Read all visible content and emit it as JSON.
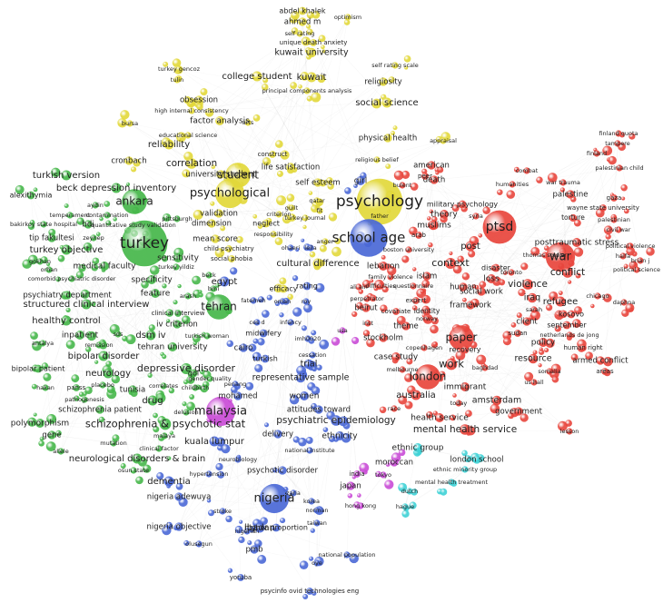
{
  "clusters": [
    {
      "color": "#e2d83a",
      "nodes": [
        "abdel khalek",
        "ahmed m",
        "optimism",
        "self rating",
        "unique death anxiety",
        "kuwait university",
        "turkey gencoz",
        "tulin",
        "self rating scale",
        "college student",
        "kuwait",
        "religiosity",
        "principal components analysis",
        "obsession",
        "social science",
        "high internal consistency",
        "factor analysis",
        "bursa",
        "educational science",
        "arts",
        "physical health",
        "appraisal",
        "reliability",
        "correlation",
        "cronbach",
        "construct",
        "religious belief",
        "university student",
        "student",
        "life satisfaction",
        "psychological",
        "self esteem",
        "validation",
        "dimension",
        "criterion",
        "guilt",
        "fit",
        "qatar",
        "neglect",
        "turkey journal",
        "responsibility",
        "mean score",
        "child psychiatry",
        "social phobia",
        "cultural difference",
        "efficacy",
        "anger",
        "father",
        "psychology"
      ]
    },
    {
      "color": "#4a68d6",
      "nodes": [
        "school age",
        "girl",
        "ohaeri",
        "leila",
        "egypt",
        "rating",
        "fatemeh",
        "oman",
        "roy",
        "ces d",
        "midwifery",
        "infancy",
        "imh0020",
        "turkish",
        "cairo",
        "cessation",
        "trial",
        "representative sample",
        "women",
        "penang",
        "mohamed",
        "attitudes toward",
        "psychiatric epidemiology",
        "delivery",
        "ethnicity",
        "kuala lumpur",
        "national institute",
        "neurobiology",
        "psychotic disorder",
        "dementia",
        "hypertension",
        "nigeria",
        "zaria",
        "korea",
        "norman",
        "taiwan",
        "nigeria adewuya",
        "stroke",
        "higher proportion",
        "nigerian",
        "nigeria objective",
        "ibadan",
        "olusegun",
        "pmb",
        "oye",
        "national population",
        "yoruba",
        "psycinfo ovid technologies eng"
      ]
    },
    {
      "color": "#c94bd6",
      "nodes": [
        "malaysia",
        "usa",
        "moroccan",
        "tokyo",
        "india",
        "japan",
        "hong kong"
      ]
    },
    {
      "color": "#3fd2d6",
      "nodes": [
        "ethnic group",
        "london school",
        "ethnic minority group",
        "dutch",
        "mental health treatment",
        "hague"
      ]
    },
    {
      "color": "#46b74a",
      "nodes": [
        "turkish version",
        "beck depression inventory",
        "ankara",
        "alexithymia",
        "aydin",
        "temperament",
        "contamination",
        "bdi",
        "quantitative study validation",
        "pittsburgh",
        "bakirkoy state hospital",
        "turkey",
        "tip fakultesi",
        "zeynep",
        "turkey objective",
        "sensitivity",
        "turkey yildiz",
        "gokhan",
        "orhan",
        "medical faculty",
        "comorbid psychiatric disorder",
        "specificity",
        "psychiatry department",
        "structured clinical interview",
        "feature",
        "arash",
        "beck",
        "bmi",
        "tehran",
        "healthy control",
        "clinical interview",
        "iv criterion",
        "inpatient",
        "sds",
        "dsm iv",
        "remission",
        "antalya",
        "tehran university",
        "turkish woman",
        "bipolar disorder",
        "bipolar patient",
        "depressive disorder",
        "neurology",
        "qol",
        "gender quality",
        "hakan",
        "panss",
        "placebo",
        "tunisia",
        "correlates",
        "childbirth",
        "drug",
        "pathogenesis",
        "schizophrenia patient",
        "delusion",
        "polymorphism",
        "schizophrenia & psychotic stat",
        "gene",
        "malaya",
        "mutation",
        "clinical factor",
        "allele",
        "neurological disorders & brain",
        "osun state"
      ]
    },
    {
      "color": "#e8453c",
      "nodes": [
        "finland quota",
        "tampere",
        "finland",
        "combat",
        "palestinian child",
        "humanities",
        "war trauma",
        "palestine",
        "gaza",
        "wayne state university",
        "torture",
        "palestinian",
        "civil war",
        "american",
        "peer",
        "death",
        "bulent",
        "military psychology",
        "theory",
        "syria",
        "muslims",
        "ptsd",
        "arab",
        "boston university",
        "post",
        "posttraumatic stress",
        "political violence",
        "thomas soldier",
        "war",
        "haifa",
        "brian j",
        "context",
        "lebanon",
        "disaster",
        "political science",
        "toronto",
        "conflict",
        "islam",
        "family violence",
        "difficulties",
        "questionnaire",
        "loss",
        "ali ain",
        "violence",
        "human",
        "social work",
        "iraq",
        "refugee",
        "perpetrator",
        "expert",
        "chicago",
        "daphna",
        "framework",
        "beirut",
        "covariate",
        "identity",
        "sarah",
        "kosovo",
        "norway",
        "client",
        "inst",
        "september",
        "theme",
        "sudan",
        "netherlands de jong",
        "paper",
        "stockholm",
        "policy",
        "human right",
        "copenhagen",
        "recovery",
        "case study",
        "resource",
        "armed conflict",
        "work",
        "baghdad",
        "melbourne",
        "somalia",
        "areas",
        "london",
        "us hall",
        "immigrant",
        "australia",
        "amsterdam",
        "today",
        "race",
        "government",
        "health service",
        "mental health service",
        "lesson"
      ]
    }
  ]
}
